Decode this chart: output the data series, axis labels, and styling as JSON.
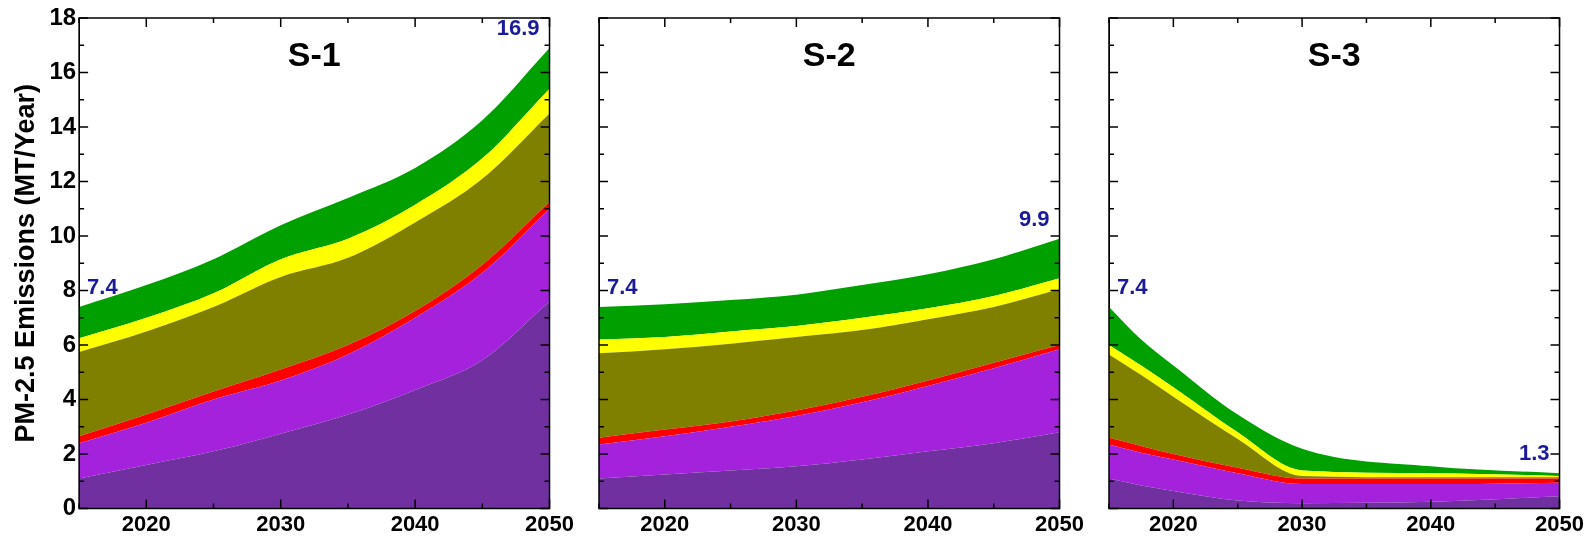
{
  "chart_data": [
    {
      "type": "area",
      "title": "S-1",
      "ylabel": "PM-2.5 Emissions (MT/Year)",
      "stacked": true,
      "grid": false,
      "legend": false,
      "marker": "none",
      "x": [
        2015,
        2020,
        2025,
        2030,
        2035,
        2040,
        2045,
        2050
      ],
      "xlim": [
        2015,
        2050
      ],
      "xticks": [
        {
          "value": 2015,
          "label": null
        },
        2020,
        {
          "value": 2025,
          "label": null
        },
        2030,
        {
          "value": 2035,
          "label": null
        },
        2040,
        {
          "value": 2045,
          "label": null
        },
        2050
      ],
      "ylim": [
        0,
        18
      ],
      "yticks": [
        0,
        {
          "value": 1,
          "label": null
        },
        2,
        {
          "value": 3,
          "label": null
        },
        4,
        {
          "value": 5,
          "label": null
        },
        6,
        {
          "value": 7,
          "label": null
        },
        8,
        {
          "value": 9,
          "label": null
        },
        10,
        {
          "value": 11,
          "label": null
        },
        12,
        {
          "value": 13,
          "label": null
        },
        14,
        {
          "value": 15,
          "label": null
        },
        16,
        {
          "value": 17,
          "label": null
        },
        18
      ],
      "series": [
        {
          "color": "#7030a0",
          "values": [
            1.1,
            1.6,
            2.1,
            2.75,
            3.45,
            4.35,
            5.45,
            7.6
          ]
        },
        {
          "color": "#a522dc",
          "values": [
            1.3,
            1.55,
            1.9,
            1.95,
            2.2,
            2.65,
            3.2,
            3.4
          ]
        },
        {
          "color": "#ff0000",
          "values": [
            0.25,
            0.3,
            0.3,
            0.4,
            0.35,
            0.25,
            0.3,
            0.25
          ]
        },
        {
          "color": "#808000",
          "values": [
            3.1,
            3.05,
            3.1,
            3.4,
            3.2,
            3.25,
            3.15,
            3.25
          ]
        },
        {
          "color": "#ffff00",
          "values": [
            0.5,
            0.5,
            0.5,
            0.65,
            0.7,
            0.65,
            0.75,
            0.9
          ]
        },
        {
          "color": "#00a000",
          "values": [
            1.15,
            1.2,
            1.25,
            1.25,
            1.5,
            1.35,
            1.4,
            1.5
          ]
        }
      ],
      "annotations": [
        "7.4",
        "16.9"
      ]
    },
    {
      "type": "area",
      "title": "S-2",
      "stacked": true,
      "grid": false,
      "legend": false,
      "marker": "none",
      "tick_labels": "x",
      "x": [
        2015,
        2020,
        2025,
        2030,
        2035,
        2040,
        2045,
        2050
      ],
      "xlim": [
        2015,
        2050
      ],
      "xticks": [
        {
          "value": 2015,
          "label": null
        },
        2020,
        {
          "value": 2025,
          "label": null
        },
        2030,
        {
          "value": 2035,
          "label": null
        },
        2040,
        {
          "value": 2045,
          "label": null
        },
        2050
      ],
      "ylim": [
        0,
        18
      ],
      "yticks": [
        0,
        {
          "value": 1,
          "label": null
        },
        2,
        {
          "value": 3,
          "label": null
        },
        4,
        {
          "value": 5,
          "label": null
        },
        6,
        {
          "value": 7,
          "label": null
        },
        8,
        {
          "value": 9,
          "label": null
        },
        10,
        {
          "value": 11,
          "label": null
        },
        12,
        {
          "value": 13,
          "label": null
        },
        14,
        {
          "value": 15,
          "label": null
        },
        16,
        {
          "value": 17,
          "label": null
        },
        18
      ],
      "series": [
        {
          "color": "#7030a0",
          "values": [
            1.1,
            1.25,
            1.4,
            1.55,
            1.8,
            2.1,
            2.4,
            2.8
          ]
        },
        {
          "color": "#a522dc",
          "values": [
            1.25,
            1.4,
            1.6,
            1.85,
            2.1,
            2.4,
            2.75,
            3.05
          ]
        },
        {
          "color": "#ff0000",
          "values": [
            0.25,
            0.25,
            0.2,
            0.2,
            0.2,
            0.2,
            0.2,
            0.15
          ]
        },
        {
          "color": "#808000",
          "values": [
            3.1,
            2.95,
            2.85,
            2.7,
            2.45,
            2.25,
            2.05,
            2.05
          ]
        },
        {
          "color": "#ffff00",
          "values": [
            0.5,
            0.45,
            0.45,
            0.4,
            0.45,
            0.4,
            0.4,
            0.4
          ]
        },
        {
          "color": "#00a000",
          "values": [
            1.2,
            1.2,
            1.15,
            1.15,
            1.2,
            1.25,
            1.35,
            1.45
          ]
        }
      ],
      "annotations": [
        "7.4",
        "9.9"
      ]
    },
    {
      "type": "area",
      "title": "S-3",
      "stacked": true,
      "grid": false,
      "legend": false,
      "marker": "none",
      "tick_labels": "x",
      "x": [
        2015,
        2017.5,
        2020,
        2025,
        2030,
        2040,
        2050
      ],
      "xlim": [
        2015,
        2050
      ],
      "xticks": [
        {
          "value": 2015,
          "label": null
        },
        2020,
        {
          "value": 2025,
          "label": null
        },
        2030,
        {
          "value": 2035,
          "label": null
        },
        2040,
        {
          "value": 2045,
          "label": null
        },
        2050
      ],
      "ylim": [
        0,
        18
      ],
      "yticks": [
        0,
        {
          "value": 1,
          "label": null
        },
        2,
        {
          "value": 3,
          "label": null
        },
        4,
        {
          "value": 5,
          "label": null
        },
        6,
        {
          "value": 7,
          "label": null
        },
        8,
        {
          "value": 9,
          "label": null
        },
        10,
        {
          "value": 11,
          "label": null
        },
        12,
        {
          "value": 13,
          "label": null
        },
        14,
        {
          "value": 15,
          "label": null
        },
        16,
        {
          "value": 17,
          "label": null
        },
        18
      ],
      "series": [
        {
          "color": "#7030a0",
          "values": [
            1.1,
            0.85,
            0.65,
            0.3,
            0.2,
            0.25,
            0.45
          ]
        },
        {
          "color": "#a522dc",
          "values": [
            1.25,
            1.2,
            1.15,
            1.0,
            0.7,
            0.65,
            0.5
          ]
        },
        {
          "color": "#ff0000",
          "values": [
            0.25,
            0.25,
            0.2,
            0.2,
            0.2,
            0.2,
            0.15
          ]
        },
        {
          "color": "#808000",
          "values": [
            3.05,
            2.6,
            2.1,
            1.05,
            0.1,
            0.05,
            0.05
          ]
        },
        {
          "color": "#ffff00",
          "values": [
            0.35,
            0.35,
            0.35,
            0.25,
            0.2,
            0.15,
            0.05
          ]
        },
        {
          "color": "#00a000",
          "values": [
            1.4,
            0.95,
            0.8,
            0.65,
            0.8,
            0.25,
            0.1
          ]
        }
      ],
      "annotations": [
        "7.4",
        "1.3"
      ]
    }
  ]
}
